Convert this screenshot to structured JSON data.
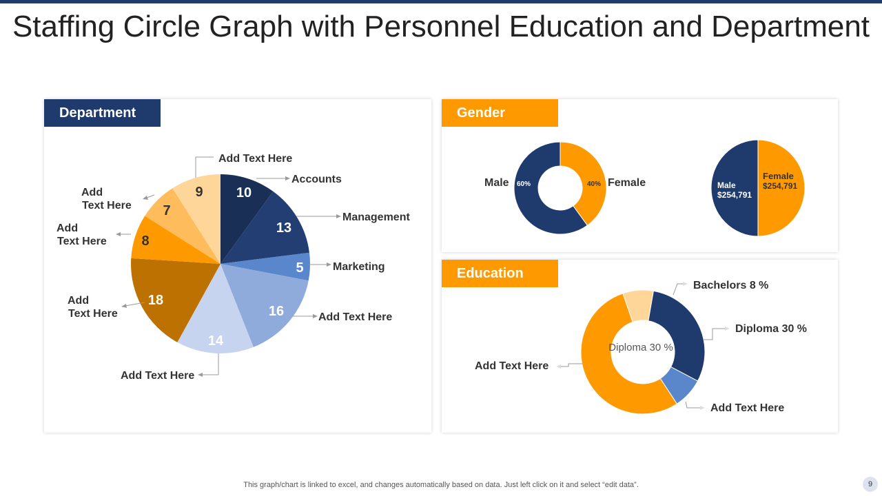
{
  "title": "Staffing Circle Graph with Personnel Education and Department",
  "colors": {
    "navy": "#1f3b6e",
    "orange": "#ff9900",
    "label_text": "#333333"
  },
  "department": {
    "heading": "Department",
    "labels": {
      "accounts": "Accounts",
      "management": "Management",
      "marketing": "Marketing",
      "add16": "Add  Text Here",
      "add14": "Add  Text Here",
      "add18_l1": "Add",
      "add18_l2": "Text Here",
      "add8_l1": "Add",
      "add8_l2": "Text Here",
      "add7_l1": "Add",
      "add7_l2": "Text Here",
      "add9": "Add  Text Here"
    }
  },
  "gender": {
    "heading": "Gender",
    "male_label": "Male",
    "female_label": "Female",
    "male_pct": "60%",
    "female_pct": "40%",
    "pie_male": "Male",
    "pie_male_value": "$254,791",
    "pie_female": "Female",
    "pie_female_value": "$254,791"
  },
  "education": {
    "heading": "Education",
    "bachelors": "Bachelors 8 %",
    "diploma": "Diploma 30 %",
    "add_left": "Add  Text Here",
    "add_bottom": "Add  Text Here",
    "center": "Diploma 30 %"
  },
  "footer": "This graph/chart is linked to excel,  and changes automatically based on data. Just left click on it and select “edit data”.",
  "page_number": "9",
  "chart_data": [
    {
      "type": "pie",
      "title": "Department",
      "categories": [
        "Accounts",
        "Management",
        "Marketing",
        "Add  Text Here",
        "Add  Text Here",
        "Add Text Here",
        "Add Text Here",
        "Add Text Here",
        "Add  Text Here"
      ],
      "values": [
        10,
        13,
        5,
        16,
        14,
        18,
        8,
        7,
        9
      ],
      "colors": [
        "#1a2f55",
        "#223e73",
        "#5a86cc",
        "#8eabdb",
        "#c7d4ef",
        "#bd7100",
        "#ff9900",
        "#ffbc5c",
        "#ffd699"
      ]
    },
    {
      "type": "pie",
      "title": "Gender",
      "categories": [
        "Female",
        "Male"
      ],
      "values": [
        40,
        60
      ],
      "colors": [
        "#ff9900",
        "#1f3b6e"
      ],
      "style": "donut"
    },
    {
      "type": "pie",
      "title": "Gender",
      "categories": [
        "Female",
        "Male"
      ],
      "values": [
        254791,
        254791
      ],
      "colors": [
        "#ff9900",
        "#1f3b6e"
      ]
    },
    {
      "type": "pie",
      "title": "Education",
      "categories": [
        "Bachelors",
        "Diploma",
        "Add  Text Here",
        "Add  Text Here"
      ],
      "values": [
        8,
        30,
        8,
        54
      ],
      "colors": [
        "#ffd699",
        "#1f3b6e",
        "#5a86cc",
        "#ff9900"
      ],
      "style": "donut"
    }
  ]
}
